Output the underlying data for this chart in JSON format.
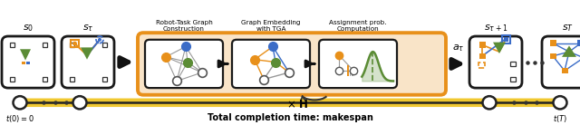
{
  "fig_width": 6.4,
  "fig_height": 1.38,
  "dpi": 100,
  "bg_color": "#ffffff",
  "orange_color": "#E8901A",
  "light_orange_bg": "#F9E4C8",
  "blue_color": "#3B6CC7",
  "green_color": "#5B8C35",
  "dark_outline": "#1a1a1a",
  "timeline_yellow": "#F0C830",
  "label_s0": "$s_0$",
  "label_st": "$s_{\\tau}$",
  "label_st1": "$s_{\\tau+1}$",
  "label_sT": "$s_T$",
  "label_at": "$a_{\\tau}$",
  "label_t0": "$t(0) = 0$",
  "label_tT": "$t(T)$",
  "label_makespan": "Total completion time: makespan",
  "label_robot_task": "Robot-Task Graph\nConstruction",
  "label_graph_emb": "Graph Embedding\nwith TGA",
  "label_assign": "Assignment prob.\nComputation",
  "label_xH": "$\\times$ H"
}
